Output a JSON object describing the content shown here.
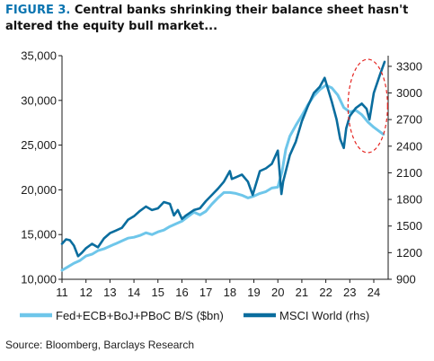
{
  "title": {
    "label": "FIGURE 3.",
    "text": "Central banks shrinking their balance sheet hasn't altered the equity bull market..."
  },
  "source": "Source: Bloomberg, Barclays Research",
  "colors": {
    "bs": "#6ec6ea",
    "msci": "#0a6d9e",
    "highlight": "#e52521",
    "axis": "#1a1a1a"
  },
  "chart_data": {
    "type": "line",
    "title": "Central banks shrinking their balance sheet hasn't altered the equity bull market...",
    "xlabel": "",
    "ylabel": "",
    "x_ticks": [
      "11",
      "12",
      "13",
      "14",
      "15",
      "16",
      "17",
      "18",
      "19",
      "20",
      "21",
      "22",
      "23",
      "24"
    ],
    "xlim": [
      2011.0,
      2024.6
    ],
    "y_left": {
      "ticks": [
        "10,000",
        "15,000",
        "20,000",
        "25,000",
        "30,000",
        "35,000"
      ],
      "lim": [
        10000,
        35000
      ]
    },
    "y_right": {
      "ticks": [
        "900",
        "1200",
        "1500",
        "1800",
        "2100",
        "2400",
        "2700",
        "3000",
        "3300"
      ],
      "lim": [
        900,
        3420
      ]
    },
    "legend": {
      "placement": "bottom",
      "entries": [
        "Fed+ECB+BoJ+PBoC B/S ($bn)",
        "MSCI World (rhs)"
      ]
    },
    "annotation": "dashed red ellipse highlighting 2023-2024",
    "series": [
      {
        "name": "Fed+ECB+BoJ+PBoC B/S ($bn)",
        "axis": "left",
        "x": [
          2011.0,
          2011.25,
          2011.5,
          2011.75,
          2012.0,
          2012.25,
          2012.5,
          2012.75,
          2013.0,
          2013.25,
          2013.5,
          2013.75,
          2014.0,
          2014.25,
          2014.5,
          2014.75,
          2015.0,
          2015.25,
          2015.5,
          2015.75,
          2016.0,
          2016.25,
          2016.5,
          2016.75,
          2017.0,
          2017.25,
          2017.5,
          2017.75,
          2018.0,
          2018.25,
          2018.5,
          2018.75,
          2019.0,
          2019.25,
          2019.5,
          2019.75,
          2020.0,
          2020.17,
          2020.33,
          2020.5,
          2020.75,
          2021.0,
          2021.25,
          2021.5,
          2021.75,
          2022.0,
          2022.25,
          2022.5,
          2022.75,
          2023.0,
          2023.25,
          2023.5,
          2023.75,
          2024.0,
          2024.25,
          2024.4
        ],
        "values": [
          11000,
          11400,
          11800,
          12100,
          12600,
          12800,
          13200,
          13400,
          13700,
          14000,
          14300,
          14600,
          14700,
          14900,
          15200,
          15000,
          15300,
          15500,
          15900,
          16200,
          16500,
          17000,
          17500,
          17200,
          17600,
          18400,
          19100,
          19700,
          19700,
          19600,
          19400,
          19100,
          19300,
          19600,
          19800,
          20200,
          20300,
          22000,
          24500,
          26000,
          27200,
          28300,
          29500,
          30500,
          31200,
          31700,
          31400,
          30600,
          29200,
          28700,
          28900,
          28400,
          27600,
          27000,
          26500,
          26200
        ]
      },
      {
        "name": "MSCI World (rhs)",
        "axis": "right",
        "x": [
          2011.0,
          2011.17,
          2011.33,
          2011.5,
          2011.67,
          2011.83,
          2012.0,
          2012.25,
          2012.5,
          2012.75,
          2013.0,
          2013.25,
          2013.5,
          2013.75,
          2014.0,
          2014.25,
          2014.5,
          2014.75,
          2015.0,
          2015.25,
          2015.5,
          2015.67,
          2015.83,
          2016.0,
          2016.17,
          2016.5,
          2016.75,
          2017.0,
          2017.25,
          2017.5,
          2017.75,
          2018.0,
          2018.08,
          2018.25,
          2018.5,
          2018.75,
          2018.95,
          2019.25,
          2019.5,
          2019.75,
          2020.0,
          2020.15,
          2020.22,
          2020.5,
          2020.75,
          2021.0,
          2021.25,
          2021.5,
          2021.75,
          2021.95,
          2022.25,
          2022.45,
          2022.6,
          2022.75,
          2022.85,
          2023.0,
          2023.25,
          2023.5,
          2023.7,
          2023.82,
          2024.0,
          2024.25,
          2024.45
        ],
        "values": [
          1300,
          1350,
          1340,
          1280,
          1160,
          1200,
          1250,
          1300,
          1260,
          1360,
          1420,
          1450,
          1480,
          1570,
          1610,
          1670,
          1720,
          1680,
          1700,
          1770,
          1750,
          1620,
          1680,
          1580,
          1620,
          1680,
          1700,
          1780,
          1850,
          1920,
          2000,
          2120,
          2030,
          2050,
          2080,
          2000,
          1850,
          2120,
          2150,
          2200,
          2350,
          1860,
          2000,
          2300,
          2450,
          2680,
          2850,
          3000,
          3070,
          3170,
          2900,
          2700,
          2480,
          2380,
          2600,
          2740,
          2830,
          2880,
          2820,
          2700,
          3000,
          3200,
          3350
        ]
      }
    ]
  }
}
